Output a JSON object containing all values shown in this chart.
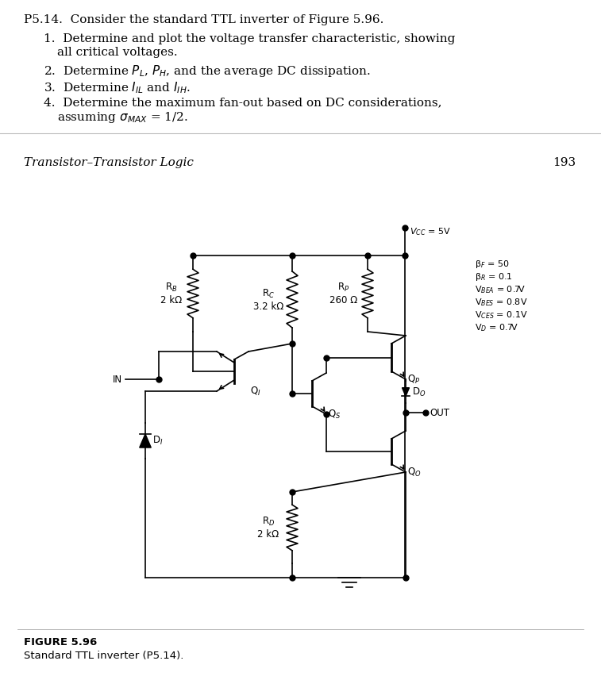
{
  "background_color": "#ffffff",
  "chapter_label": "Transistor–Transistor Logic",
  "page_number": "193",
  "figure_label": "FIGURE 5.96",
  "figure_caption": "Standard TTL inverter (P5.14).",
  "vcc_label": "V$_{CC}$ = 5V",
  "params": [
    "β$_F$ = 50",
    "β$_R$ = 0.1",
    "V$_{BEA}$ = 0.7V",
    "V$_{BES}$ = 0.8V",
    "V$_{CES}$ = 0.1V",
    "V$_D$ = 0.7V"
  ],
  "rb_label": "R$_B$\n2 kΩ",
  "rc_label": "R$_C$\n3.2 kΩ",
  "rp_label": "R$_P$\n260 Ω",
  "rd_label": "R$_D$\n2 kΩ",
  "q1_label": "Q$_I$",
  "qs_label": "Q$_S$",
  "qp_label": "Q$_P$",
  "qo_label": "Q$_O$",
  "di_label": "D$_I$",
  "do_label": "D$_O$",
  "in_label": "IN",
  "out_label": "OUT"
}
